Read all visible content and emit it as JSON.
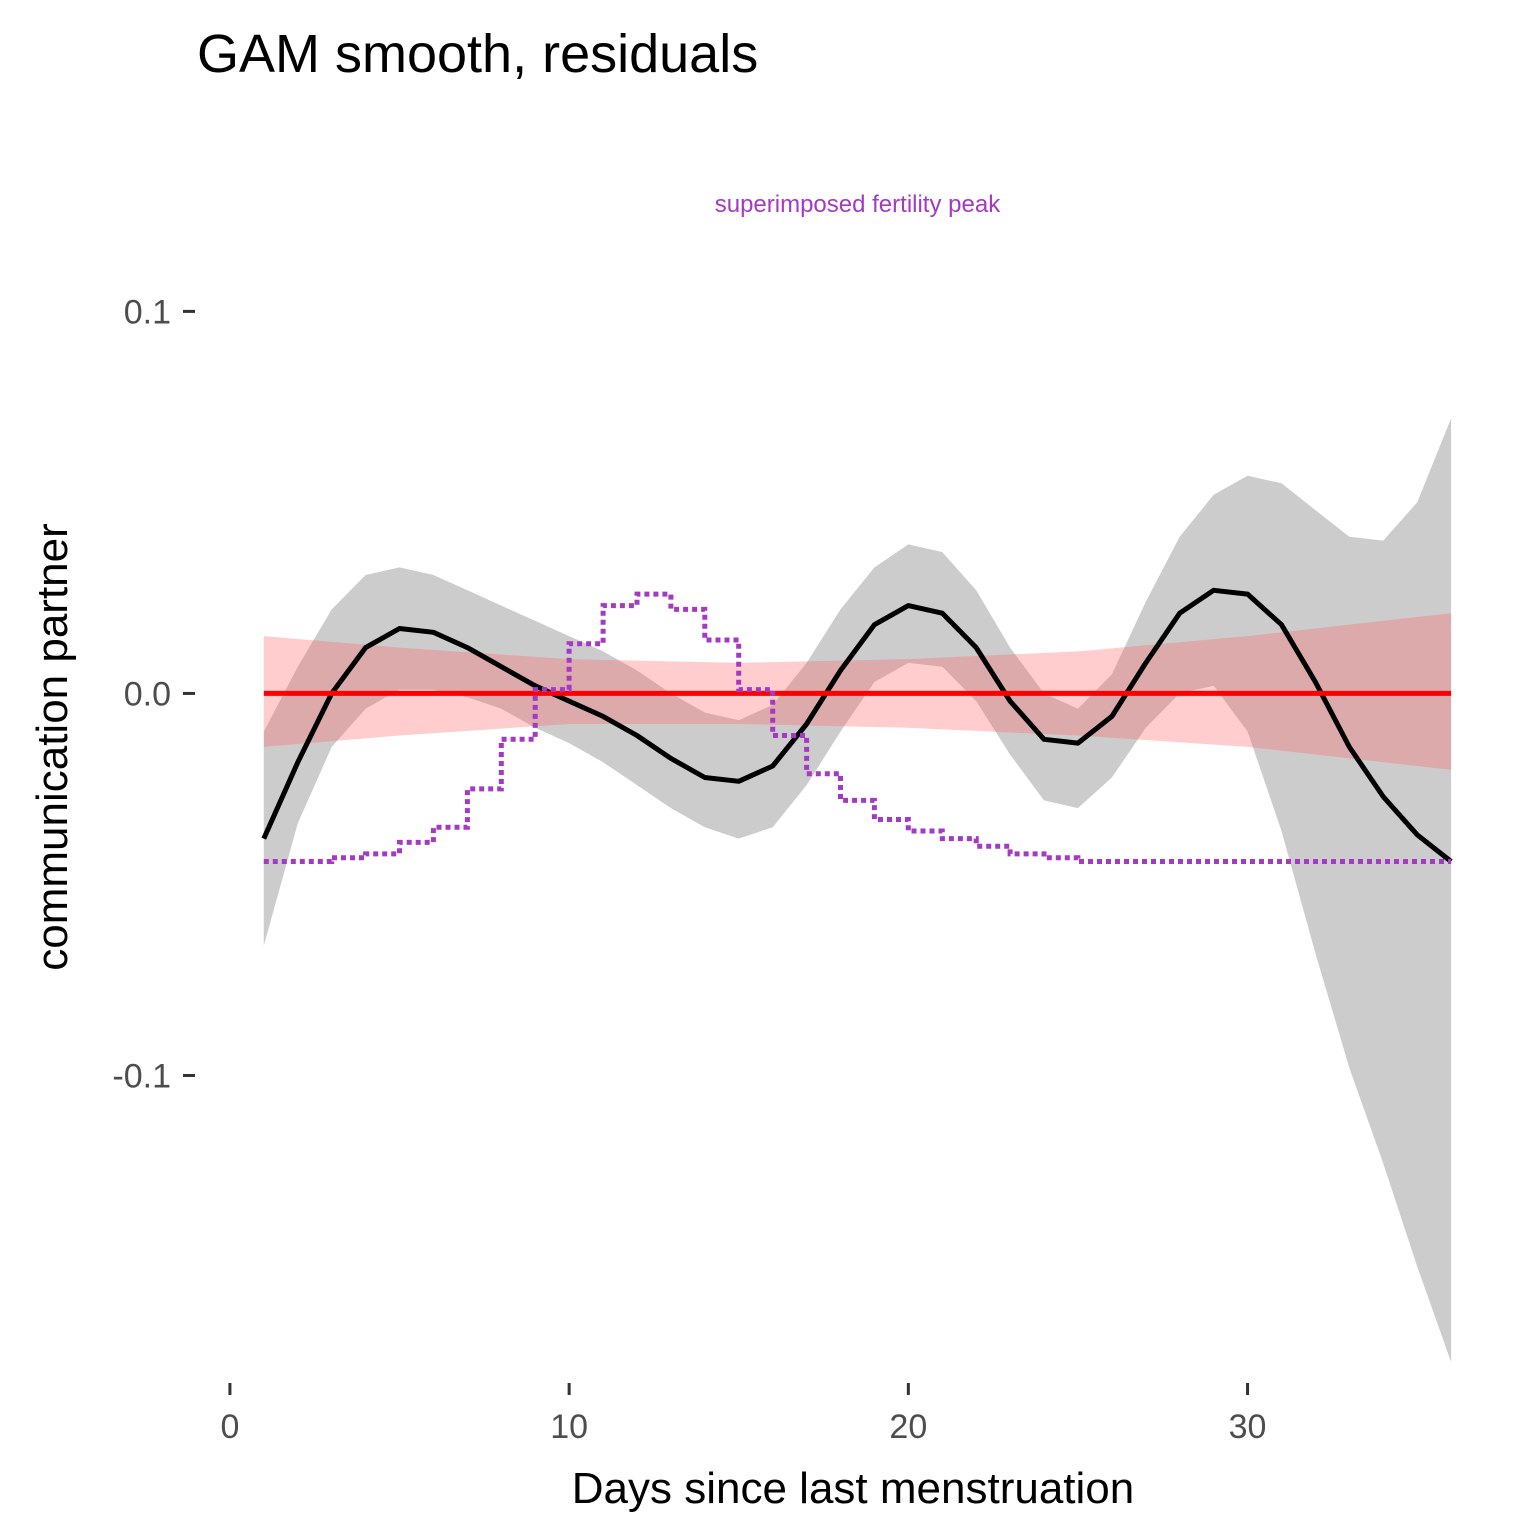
{
  "chart_data": {
    "type": "line",
    "title": "GAM smooth, residuals",
    "xlabel": "Days since last menstruation",
    "ylabel": "communication partner",
    "xlim": [
      -1,
      37
    ],
    "ylim": [
      -0.175,
      0.12
    ],
    "x_ticks": [
      0,
      10,
      20,
      30
    ],
    "y_ticks": [
      -0.1,
      0.0,
      0.1
    ],
    "x_tick_labels": [
      "0",
      "10",
      "20",
      "30"
    ],
    "y_tick_labels": [
      "-0.1",
      "0.0",
      "0.1"
    ],
    "grid": false,
    "annotation": {
      "text": "superimposed fertility peak",
      "color": "#a43ac4",
      "x": 18.5,
      "y": 0.126
    },
    "series": [
      {
        "kind": "ribbon",
        "color": "#cccccc",
        "x": [
          1,
          2,
          3,
          4,
          5,
          6,
          7,
          8,
          9,
          10,
          11,
          12,
          13,
          14,
          15,
          16,
          17,
          18,
          19,
          20,
          21,
          22,
          23,
          24,
          25,
          26,
          27,
          28,
          29,
          30,
          31,
          32,
          33,
          34,
          35,
          36
        ],
        "upper": [
          -0.01,
          0.007,
          0.022,
          0.031,
          0.033,
          0.031,
          0.027,
          0.023,
          0.019,
          0.015,
          0.011,
          0.006,
          0.0,
          -0.005,
          -0.007,
          -0.003,
          0.008,
          0.022,
          0.033,
          0.039,
          0.037,
          0.027,
          0.012,
          0.0,
          -0.004,
          0.005,
          0.024,
          0.041,
          0.052,
          0.057,
          0.055,
          0.048,
          0.041,
          0.04,
          0.05,
          0.072
        ],
        "lower": [
          -0.066,
          -0.034,
          -0.014,
          -0.004,
          0.001,
          0.001,
          -0.001,
          -0.004,
          -0.009,
          -0.013,
          -0.018,
          -0.024,
          -0.03,
          -0.035,
          -0.038,
          -0.035,
          -0.024,
          -0.01,
          0.003,
          0.008,
          0.007,
          -0.002,
          -0.016,
          -0.028,
          -0.03,
          -0.022,
          -0.009,
          0.0,
          0.002,
          -0.01,
          -0.036,
          -0.068,
          -0.098,
          -0.123,
          -0.15,
          -0.175
        ]
      },
      {
        "kind": "ribbon",
        "color": "rgba(255,100,100,0.32)",
        "x": [
          1,
          5,
          10,
          15,
          20,
          25,
          30,
          36
        ],
        "upper": [
          0.015,
          0.012,
          0.009,
          0.008,
          0.009,
          0.011,
          0.015,
          0.021
        ],
        "lower": [
          -0.014,
          -0.011,
          -0.008,
          -0.008,
          -0.009,
          -0.011,
          -0.014,
          -0.02
        ]
      },
      {
        "kind": "line",
        "color": "#000000",
        "x": [
          1,
          2,
          3,
          4,
          5,
          6,
          7,
          8,
          9,
          10,
          11,
          12,
          13,
          14,
          15,
          16,
          17,
          18,
          19,
          20,
          21,
          22,
          23,
          24,
          25,
          26,
          27,
          28,
          29,
          30,
          31,
          32,
          33,
          34,
          35,
          36
        ],
        "y": [
          -0.038,
          -0.018,
          0.0,
          0.012,
          0.017,
          0.016,
          0.012,
          0.007,
          0.002,
          -0.002,
          -0.006,
          -0.011,
          -0.017,
          -0.022,
          -0.023,
          -0.019,
          -0.008,
          0.006,
          0.018,
          0.023,
          0.021,
          0.012,
          -0.002,
          -0.012,
          -0.013,
          -0.006,
          0.008,
          0.021,
          0.027,
          0.026,
          0.018,
          0.003,
          -0.014,
          -0.027,
          -0.037,
          -0.044
        ]
      },
      {
        "kind": "line",
        "color": "#ff0000",
        "x": [
          1,
          36
        ],
        "y": [
          0.0,
          0.0
        ]
      },
      {
        "kind": "step",
        "color": "#a43ac4",
        "dashed": true,
        "x": [
          1,
          2,
          3,
          4,
          5,
          6,
          7,
          8,
          9,
          10,
          11,
          12,
          13,
          14,
          15,
          16,
          17,
          18,
          19,
          20,
          21,
          22,
          23,
          24,
          25,
          26,
          27,
          28,
          29,
          30,
          31,
          32,
          33,
          34,
          35,
          36
        ],
        "y": [
          -0.044,
          -0.044,
          -0.043,
          -0.042,
          -0.039,
          -0.035,
          -0.025,
          -0.012,
          0.001,
          0.013,
          0.023,
          0.026,
          0.022,
          0.014,
          0.001,
          -0.011,
          -0.021,
          -0.028,
          -0.033,
          -0.036,
          -0.038,
          -0.04,
          -0.042,
          -0.043,
          -0.044,
          -0.044,
          -0.044,
          -0.044,
          -0.044,
          -0.044,
          -0.044,
          -0.044,
          -0.044,
          -0.044,
          -0.044,
          -0.044
        ]
      }
    ]
  }
}
